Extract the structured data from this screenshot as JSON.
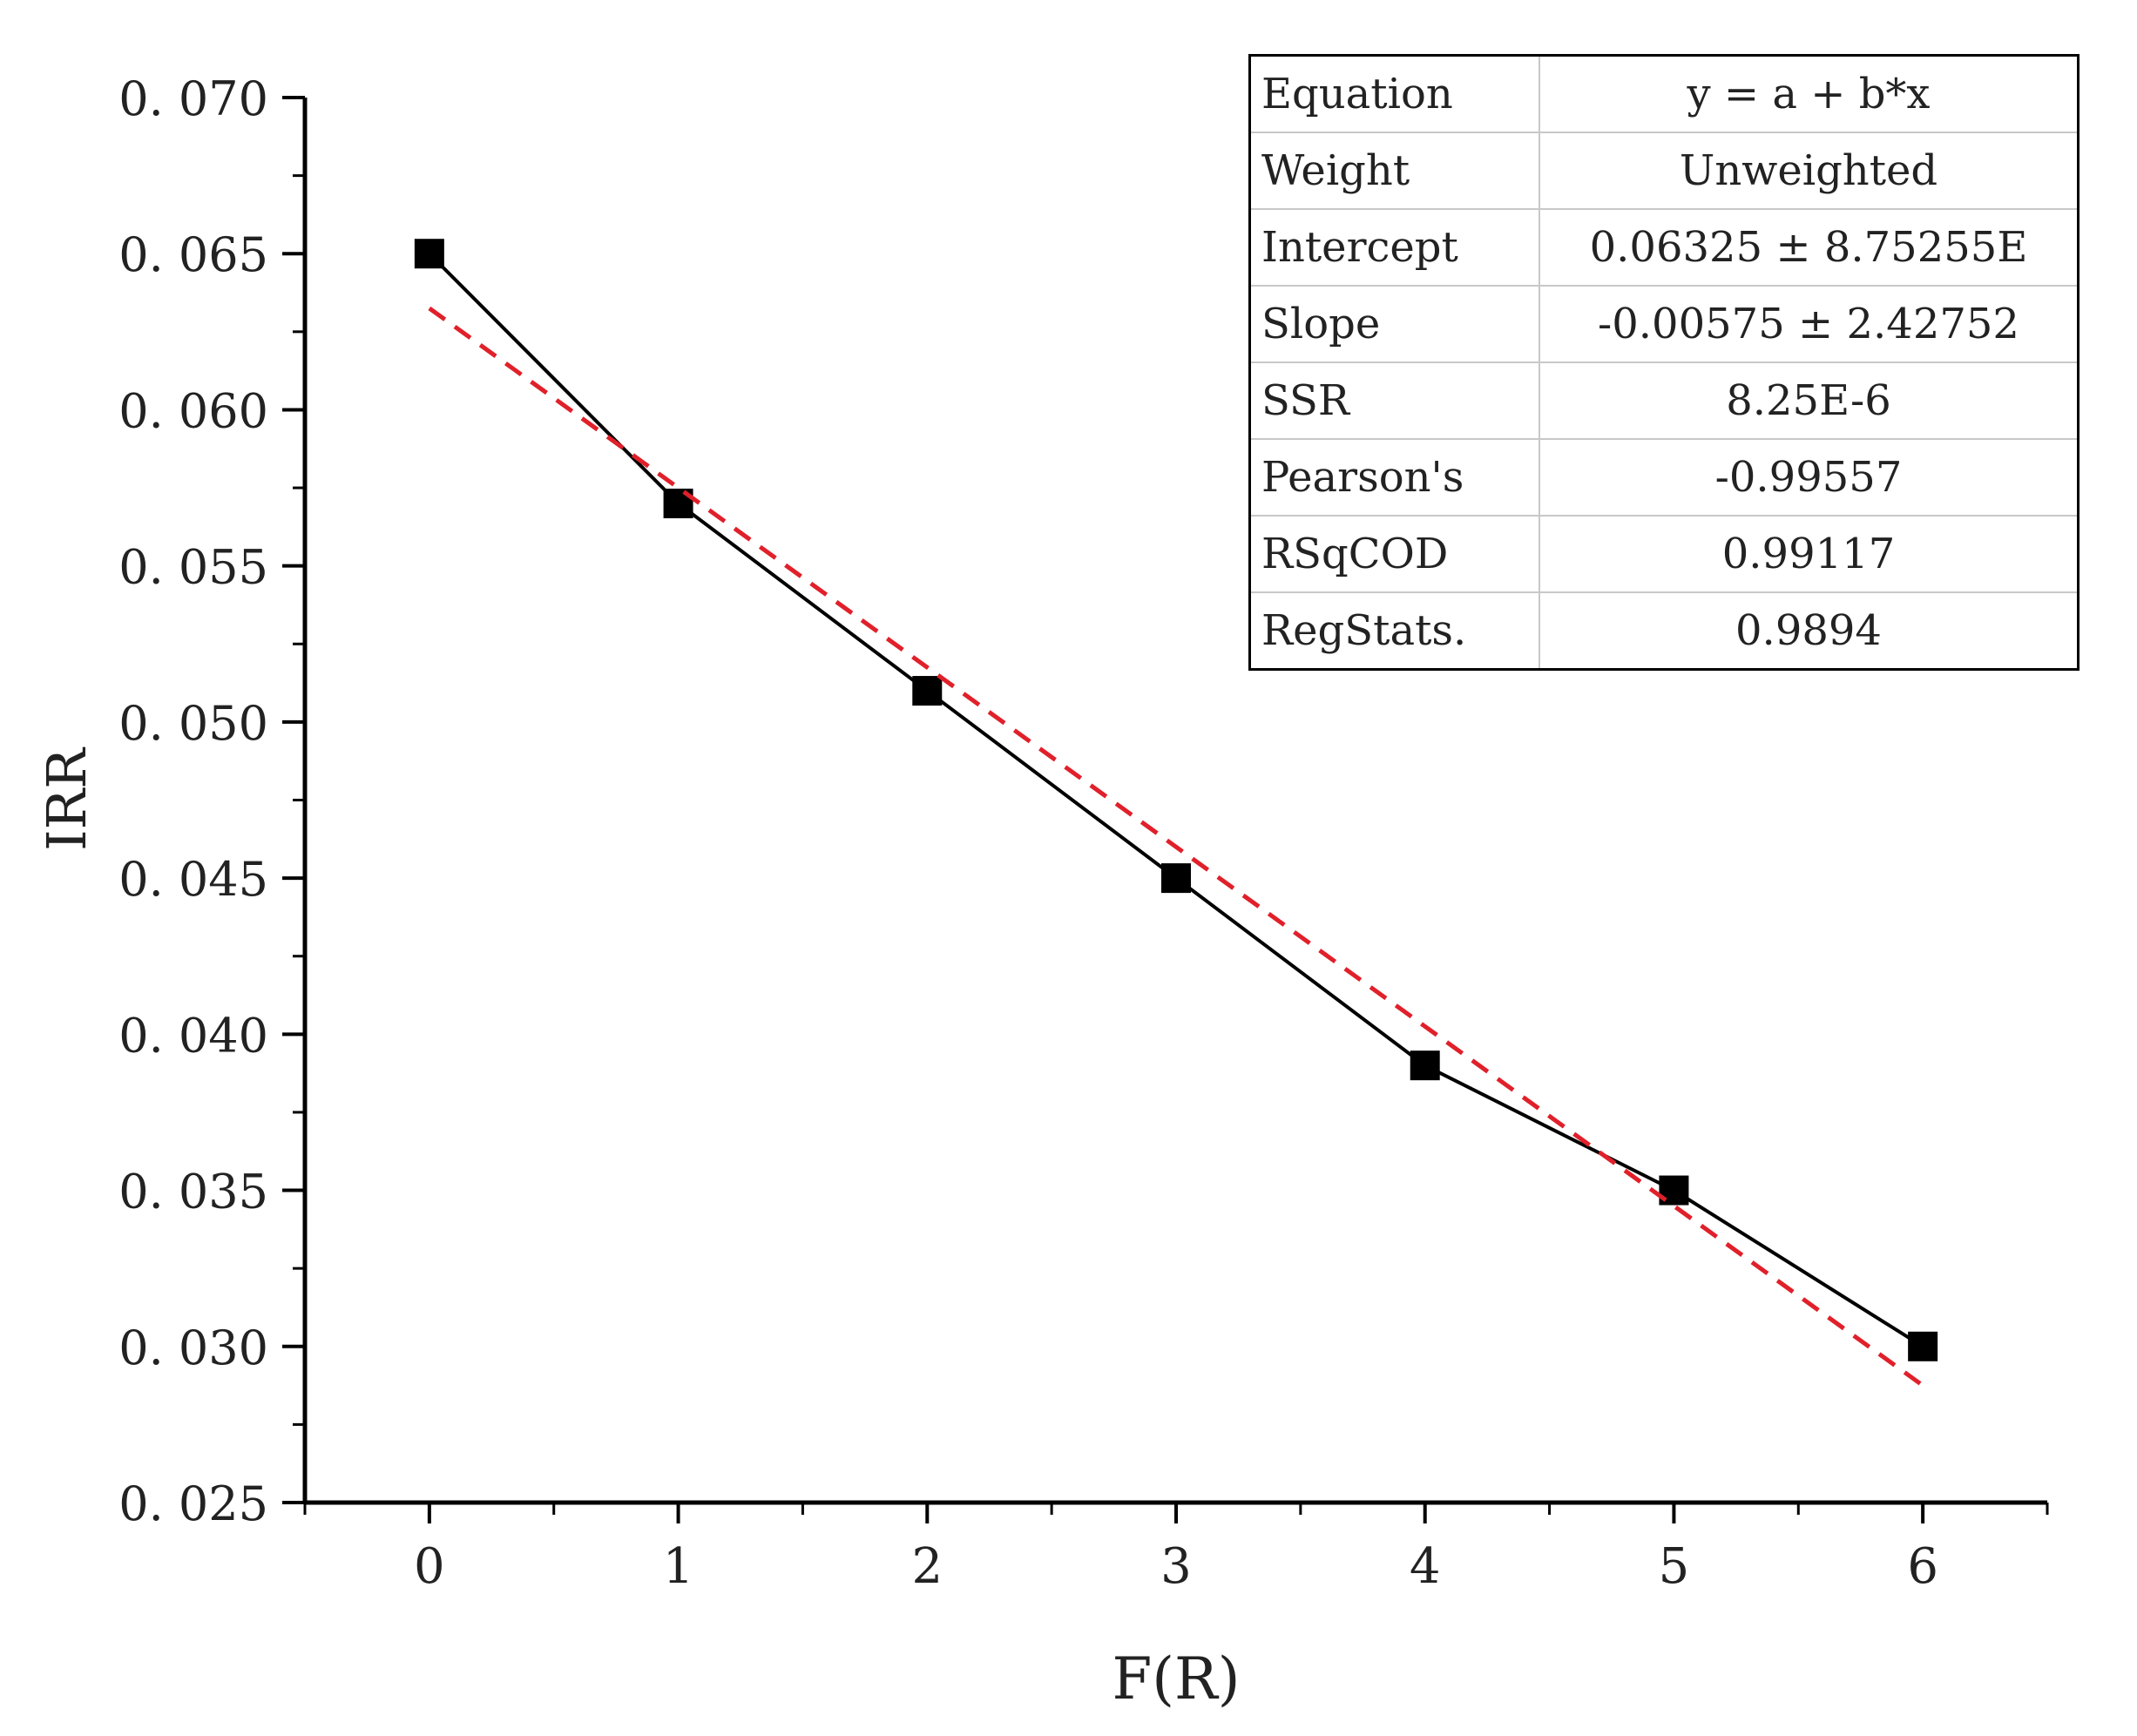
{
  "chart_data": {
    "type": "line",
    "xlabel": "F(R)",
    "ylabel": "IRR",
    "xlim": [
      -0.5,
      6.5
    ],
    "ylim": [
      0.025,
      0.07
    ],
    "x_ticks": [
      "0",
      "1",
      "2",
      "3",
      "4",
      "5",
      "6"
    ],
    "y_ticks": [
      "0. 025",
      "0. 030",
      "0. 035",
      "0. 040",
      "0. 045",
      "0. 050",
      "0. 055",
      "0. 060",
      "0. 065",
      "0. 070"
    ],
    "grid": false,
    "series": [
      {
        "style": "solid black line with square markers",
        "color": "#000000",
        "x": [
          0,
          1,
          2,
          3,
          4,
          5,
          6
        ],
        "y": [
          0.065,
          0.057,
          0.051,
          0.045,
          0.039,
          0.035,
          0.03
        ]
      },
      {
        "style": "dashed linear fit",
        "color": "#e0202a",
        "x": [
          0,
          6
        ],
        "y": [
          0.06325,
          0.02875
        ]
      }
    ],
    "fit_table": [
      {
        "label": "Equation",
        "value": "y = a + b*x"
      },
      {
        "label": "Weight",
        "value": "Unweighted"
      },
      {
        "label": "Intercept",
        "value": "0.06325 ± 8.75255E"
      },
      {
        "label": "Slope",
        "value": "-0.00575 ± 2.42752"
      },
      {
        "label": "SSR",
        "value": "8.25E-6"
      },
      {
        "label": "Pearson's",
        "value": "-0.99557"
      },
      {
        "label": "RSqCOD",
        "value": "0.99117"
      },
      {
        "label": "RegStats.",
        "value": "0.9894"
      }
    ]
  }
}
